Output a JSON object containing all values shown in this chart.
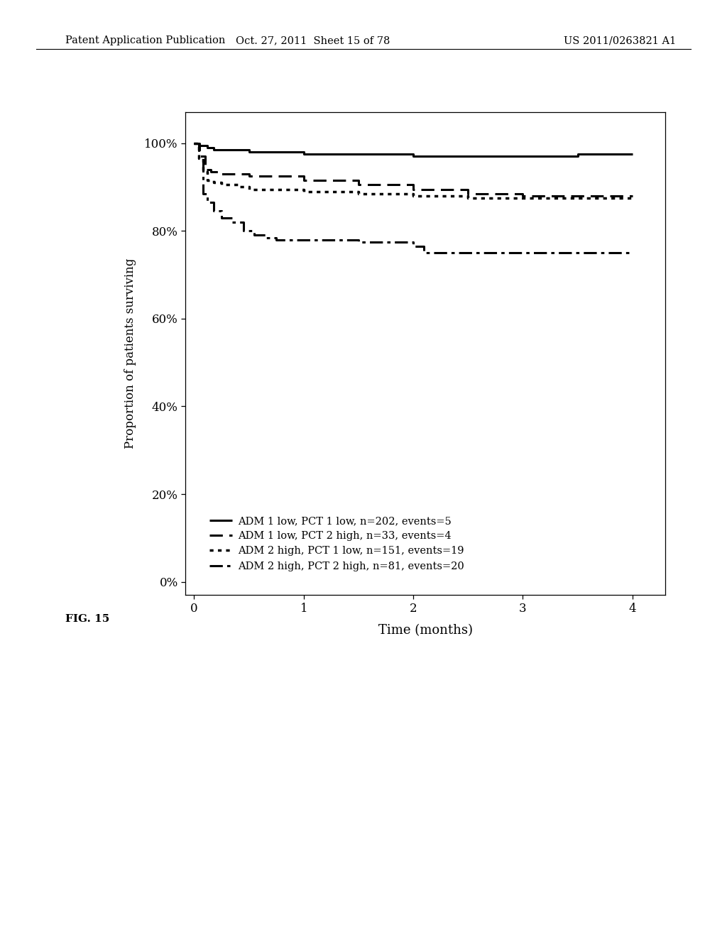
{
  "header_left": "Patent Application Publication",
  "header_mid": "Oct. 27, 2011  Sheet 15 of 78",
  "header_right": "US 2011/0263821 A1",
  "fig_label": "FIG. 15",
  "xlabel": "Time (months)",
  "ylabel": "Proportion of patients surviving",
  "yticks": [
    0,
    20,
    40,
    60,
    80,
    100
  ],
  "ytick_labels": [
    "0%",
    "20%",
    "40%",
    "60%",
    "80%",
    "100%"
  ],
  "xticks": [
    0,
    1,
    2,
    3,
    4
  ],
  "xlim": [
    -0.08,
    4.3
  ],
  "ylim": [
    -3,
    107
  ],
  "background_color": "#ffffff",
  "series": [
    {
      "label": "ADM 1 low, PCT 1 low, n=202, events=5",
      "linestyle": "solid",
      "linewidth": 2.2,
      "color": "#000000",
      "x": [
        0,
        0.04,
        0.07,
        0.12,
        0.18,
        0.25,
        0.5,
        1.0,
        1.5,
        2.0,
        2.08,
        2.5,
        3.0,
        3.5,
        4.0
      ],
      "y": [
        100,
        99.5,
        99.5,
        99.0,
        98.5,
        98.5,
        98.0,
        97.5,
        97.5,
        97.0,
        97.0,
        97.0,
        97.0,
        97.5,
        97.5
      ]
    },
    {
      "label": "ADM 1 low, PCT 2 high, n=33, events=4",
      "linestyle": "dashed",
      "linewidth": 2.2,
      "color": "#000000",
      "x": [
        0,
        0.05,
        0.1,
        0.15,
        0.25,
        0.5,
        1.0,
        1.5,
        2.0,
        2.5,
        3.0,
        3.5,
        4.0
      ],
      "y": [
        100,
        97.0,
        94.0,
        93.5,
        93.0,
        92.5,
        91.5,
        90.5,
        89.5,
        88.5,
        88.0,
        88.0,
        88.0
      ]
    },
    {
      "label": "ADM 2 high, PCT 1 low, n=151, events=19",
      "linestyle": "dotted",
      "linewidth": 2.5,
      "color": "#000000",
      "x": [
        0,
        0.04,
        0.08,
        0.12,
        0.18,
        0.25,
        0.4,
        0.5,
        1.0,
        1.5,
        2.0,
        2.5,
        3.0,
        3.5,
        4.0
      ],
      "y": [
        100,
        96.5,
        93.5,
        91.5,
        91.0,
        90.5,
        90.0,
        89.5,
        89.0,
        88.5,
        88.0,
        87.5,
        87.5,
        87.5,
        87.5
      ]
    },
    {
      "label": "ADM 2 high, PCT 2 high, n=81, events=20",
      "linestyle": "dashdot",
      "linewidth": 2.2,
      "color": "#000000",
      "x": [
        0,
        0.04,
        0.08,
        0.12,
        0.18,
        0.25,
        0.35,
        0.45,
        0.55,
        0.65,
        0.75,
        1.0,
        1.5,
        2.0,
        2.1,
        2.5,
        3.0,
        3.5,
        4.0
      ],
      "y": [
        100,
        96.5,
        88.5,
        86.5,
        84.5,
        83.0,
        82.0,
        80.0,
        79.0,
        78.5,
        78.0,
        78.0,
        77.5,
        76.5,
        75.0,
        75.0,
        75.0,
        75.0,
        75.0
      ]
    }
  ],
  "legend_labels": [
    "ADM 1 low, PCT 1 low, n=202, events=5",
    "ADM 1 low, PCT 2 high, n=33, events=4",
    "ADM 2 high, PCT 1 low, n=151, events=19",
    "ADM 2 high, PCT 2 high, n=81, events=20"
  ],
  "legend_linestyles": [
    "solid",
    "dashed",
    "dotted",
    "dashdot"
  ]
}
